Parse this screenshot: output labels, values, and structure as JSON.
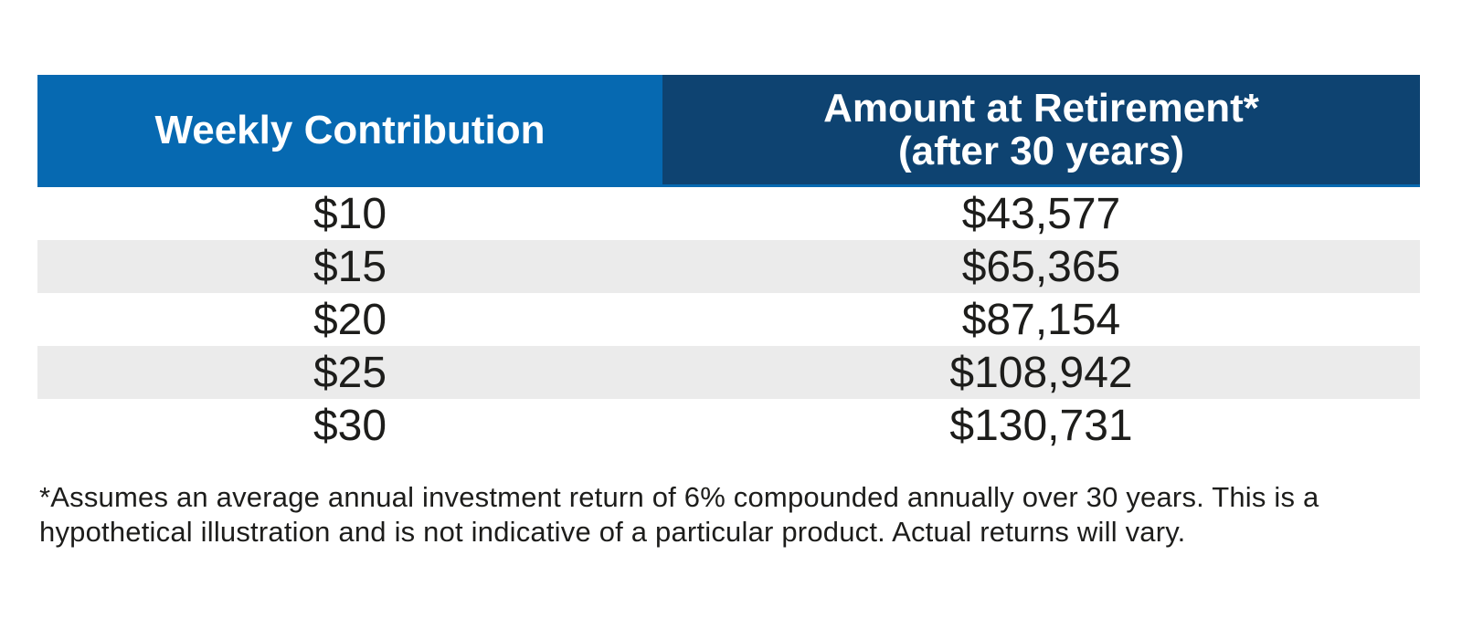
{
  "colors": {
    "header_left_bg": "#0669b1",
    "header_right_bg": "#0e4371",
    "header_text": "#ffffff",
    "row_alt_bg": "#ebebeb",
    "row_bg": "#ffffff",
    "body_text": "#1d1d1b"
  },
  "table": {
    "header": {
      "weekly_contribution": "Weekly Contribution",
      "amount_line1": "Amount at Retirement*",
      "amount_line2": "(after 30 years)"
    },
    "rows": [
      {
        "contribution": "$10",
        "amount": "$43,577"
      },
      {
        "contribution": "$15",
        "amount": "$65,365"
      },
      {
        "contribution": "$20",
        "amount": "$87,154"
      },
      {
        "contribution": "$25",
        "amount": "$108,942"
      },
      {
        "contribution": "$30",
        "amount": "$130,731"
      }
    ]
  },
  "footnote": {
    "line1": "*Assumes an average annual investment return of 6% compounded annually over 30 years. This is a",
    "line2": "hypothetical illustration and is not indicative of a particular product. Actual returns will vary."
  }
}
